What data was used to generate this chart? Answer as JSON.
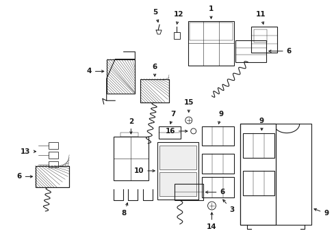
{
  "bg_color": "#ffffff",
  "line_color": "#1a1a1a",
  "fig_width": 4.89,
  "fig_height": 3.6,
  "dpi": 100,
  "label_fontsize": 7.5,
  "lw": 0.8
}
